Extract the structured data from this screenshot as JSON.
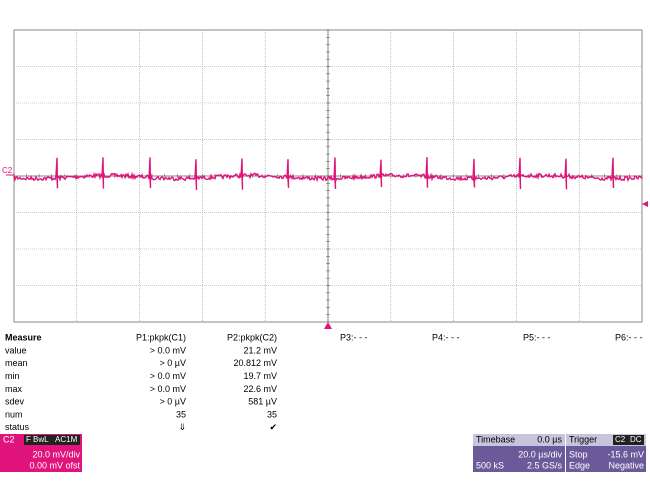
{
  "trace_label": "C2",
  "measure": {
    "header": [
      "Measure",
      "P1:pkpk(C1)",
      "P2:pkpk(C2)",
      "P3:- - -",
      "P4:- - -",
      "P5:- - -",
      "P6:- - -"
    ],
    "rows": [
      [
        "value",
        "> 0.0 mV",
        "21.2 mV"
      ],
      [
        "mean",
        "> 0 µV",
        "20.812 mV"
      ],
      [
        "min",
        "> 0.0 mV",
        "19.7 mV"
      ],
      [
        "max",
        "> 0.0 mV",
        "22.6 mV"
      ],
      [
        "sdev",
        "> 0 µV",
        "581 µV"
      ],
      [
        "num",
        "35",
        "35"
      ],
      [
        "status",
        "⇓",
        "✔"
      ]
    ]
  },
  "channel": {
    "name": "C2",
    "tags": [
      "F",
      "BwL",
      "AC1M"
    ],
    "scale": "20.0 mV/div",
    "offset": "0.00 mV ofst"
  },
  "timebase": {
    "title": "Timebase",
    "delay": "0.0 µs",
    "scale": "20.0 µs/div",
    "samples": "500 kS",
    "rate": "2.5 GS/s"
  },
  "trigger": {
    "title": "Trigger",
    "tags": [
      "C2",
      "DC"
    ],
    "mode": "Stop",
    "level": "-15.6 mV",
    "type": "Edge",
    "slope": "Negative"
  }
}
